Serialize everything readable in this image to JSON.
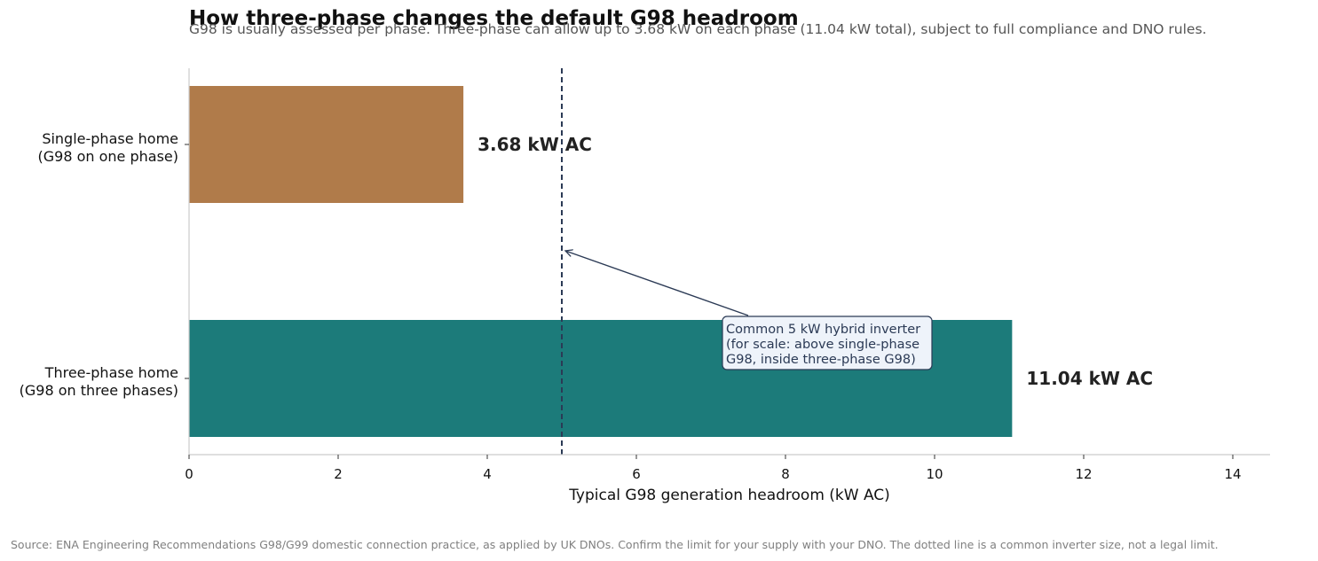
{
  "title": "How three-phase changes the default G98 headroom",
  "subtitle": "G98 is usually assessed per phase. Three-phase can allow up to 3.68 kW on each phase (11.04 kW total), subject to full compliance and DNO rules.",
  "source": "Source: ENA Engineering Recommendations G98/G99 domestic connection practice, as applied by UK DNOs. Confirm the limit for your supply with your DNO. The dotted line is a common inverter size, not a legal limit.",
  "chart_data": {
    "type": "bar",
    "orientation": "horizontal",
    "categories": [
      [
        "Single-phase home",
        "(G98 on one phase)"
      ],
      [
        "Three-phase home",
        "(G98 on three phases)"
      ]
    ],
    "values": [
      3.68,
      11.04
    ],
    "value_labels": [
      "3.68 kW AC",
      "11.04 kW AC"
    ],
    "colors": [
      "#b07b4a",
      "#1c7b7a"
    ],
    "xlabel": "Typical G98 generation headroom (kW AC)",
    "xlim": [
      0,
      14.5
    ],
    "xticks": [
      0,
      2,
      4,
      6,
      8,
      10,
      12,
      14
    ],
    "grid": false,
    "reference_line": {
      "x": 5,
      "style": "dashed",
      "color": "#2b3a55",
      "annotation": [
        "Common 5 kW hybrid inverter",
        "(for scale: above single-phase",
        "G98, inside three-phase G98)"
      ]
    }
  }
}
